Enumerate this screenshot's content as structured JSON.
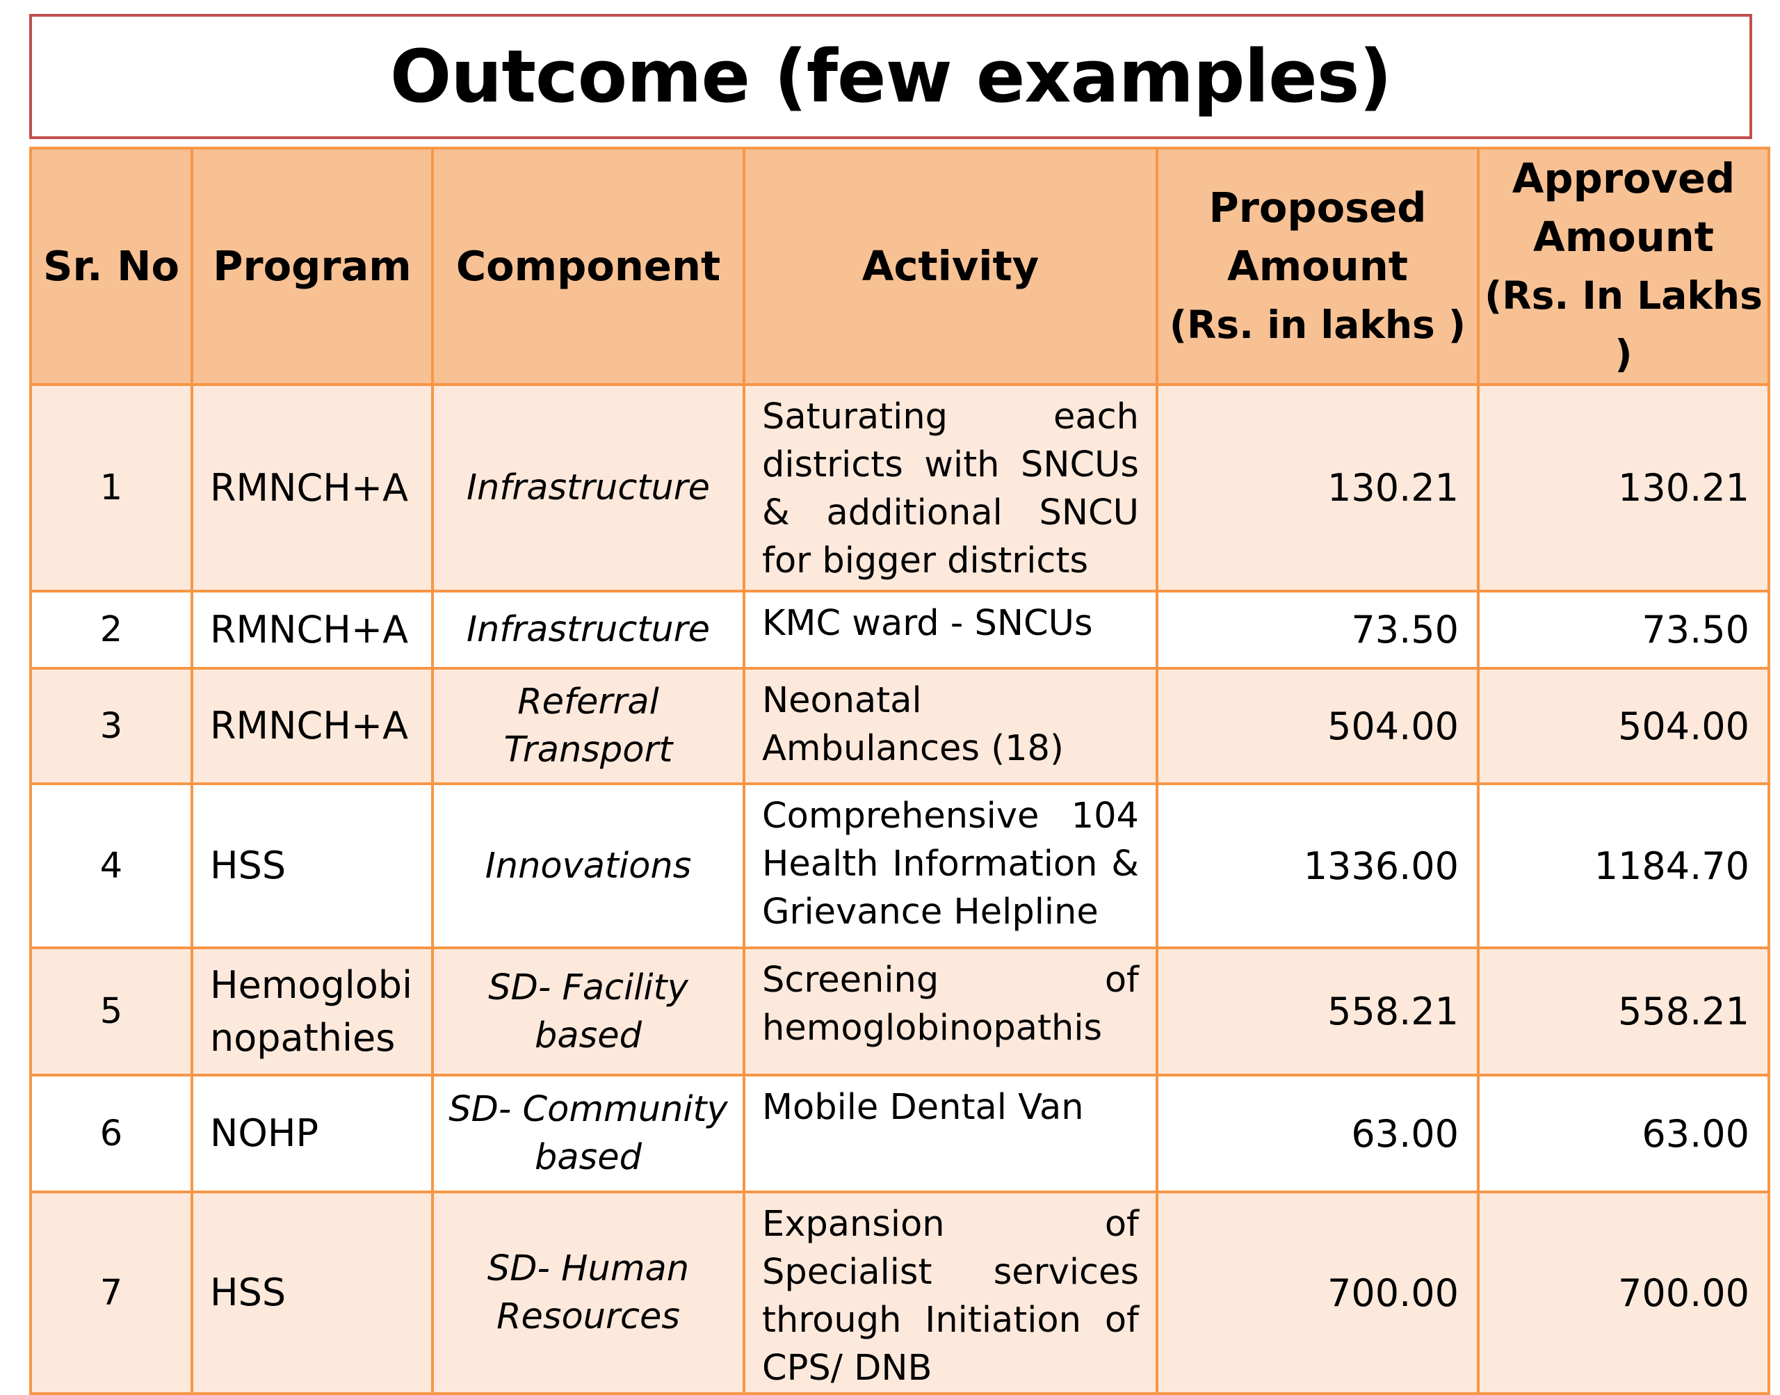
{
  "title": "Outcome (few examples)",
  "table": {
    "headers": {
      "sr_no": "Sr. No",
      "program": "Program",
      "component": "Component",
      "activity": "Activity",
      "proposed_line1": "Proposed",
      "proposed_line2": "Amount",
      "proposed_line3": "(Rs. in lakhs )",
      "approved_line1": "Approved",
      "approved_line2": "Amount",
      "approved_line3": "(Rs. In Lakhs )"
    },
    "rows": [
      {
        "sr": "1",
        "program": "RMNCH+A",
        "component": "Infrastructure",
        "activity": "Saturating each districts with SNCUs & additional SNCU for bigger districts",
        "proposed": "130.21",
        "approved": "130.21"
      },
      {
        "sr": "2",
        "program": "RMNCH+A",
        "component": "Infrastructure",
        "activity": "KMC ward - SNCUs",
        "proposed": "73.50",
        "approved": "73.50"
      },
      {
        "sr": "3",
        "program": "RMNCH+A",
        "component": "Referral Transport",
        "activity": "Neonatal Ambulances (18)",
        "proposed": "504.00",
        "approved": "504.00"
      },
      {
        "sr": "4",
        "program": "HSS",
        "component": "Innovations",
        "activity": "Comprehensive 104 Health Information & Grievance Helpline",
        "proposed": "1336.00",
        "approved": "1184.70"
      },
      {
        "sr": "5",
        "program": "Hemoglobinopathies",
        "component": "SD- Facility based",
        "activity": "Screening of hemoglobinopathis",
        "proposed": "558.21",
        "approved": "558.21"
      },
      {
        "sr": "6",
        "program": "NOHP",
        "component": "SD- Community based",
        "activity": "Mobile Dental Van",
        "proposed": "63.00",
        "approved": "63.00"
      },
      {
        "sr": "7",
        "program": "HSS",
        "component": "SD- Human Resources",
        "activity": "Expansion of Specialist services through Initiation of CPS/ DNB",
        "proposed": "700.00",
        "approved": "700.00"
      }
    ]
  }
}
